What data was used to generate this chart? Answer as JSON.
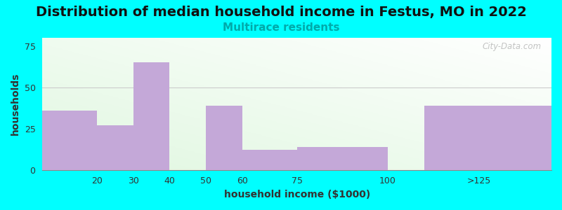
{
  "title": "Distribution of median household income in Festus, MO in 2022",
  "subtitle": "Multirace residents",
  "xlabel": "household income ($1000)",
  "ylabel": "households",
  "background_color": "#00FFFF",
  "bar_color": "#C4A8D8",
  "categories": [
    "20",
    "30",
    "40",
    "50",
    "60",
    "75",
    "100",
    ">125"
  ],
  "values": [
    36,
    27,
    65,
    0,
    39,
    12,
    14,
    39
  ],
  "bar_lefts": [
    5,
    20,
    30,
    40,
    50,
    60,
    75,
    110
  ],
  "bar_widths": [
    15,
    10,
    10,
    10,
    10,
    15,
    25,
    35
  ],
  "xtick_positions": [
    20,
    30,
    40,
    50,
    60,
    75,
    100,
    125
  ],
  "xtick_labels": [
    "20",
    "30",
    "40",
    "50",
    "60",
    "75",
    "100",
    ">125"
  ],
  "xlim": [
    5,
    145
  ],
  "ylim": [
    0,
    80
  ],
  "yticks": [
    0,
    25,
    50,
    75
  ],
  "title_fontsize": 14,
  "subtitle_fontsize": 11,
  "subtitle_color": "#00AAAA",
  "axis_label_fontsize": 10,
  "watermark": "City-Data.com"
}
